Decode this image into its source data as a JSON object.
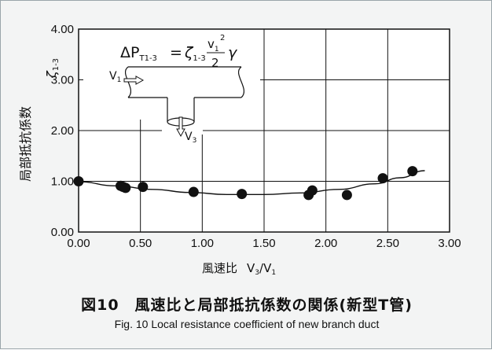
{
  "chart_data": {
    "type": "scatter",
    "title": "",
    "xlabel_main": "風速比",
    "xlabel_ratio": "V",
    "xlabel_num_sub": "3",
    "xlabel_den": "/V",
    "xlabel_den_sub": "1",
    "ylabel": "局部抵抗係数",
    "ylabel_symbol": "ζ",
    "ylabel_symbol_sub": "1-3",
    "xlim": [
      0,
      3
    ],
    "ylim": [
      0,
      4
    ],
    "xticks": [
      "0.00",
      "0.50",
      "1.00",
      "1.50",
      "2.00",
      "2.50",
      "3.00"
    ],
    "yticks": [
      "0.00",
      "1.00",
      "2.00",
      "3.00",
      "4.00"
    ],
    "grid": true,
    "points": [
      {
        "x": 0.0,
        "y": 1.0
      },
      {
        "x": 0.34,
        "y": 0.91
      },
      {
        "x": 0.36,
        "y": 0.89
      },
      {
        "x": 0.38,
        "y": 0.87
      },
      {
        "x": 0.52,
        "y": 0.89
      },
      {
        "x": 0.93,
        "y": 0.79
      },
      {
        "x": 1.32,
        "y": 0.75
      },
      {
        "x": 1.86,
        "y": 0.73
      },
      {
        "x": 1.89,
        "y": 0.82
      },
      {
        "x": 2.17,
        "y": 0.73
      },
      {
        "x": 2.46,
        "y": 1.06
      },
      {
        "x": 2.7,
        "y": 1.2
      }
    ],
    "fit_curve": [
      {
        "x": 0.0,
        "y": 0.99
      },
      {
        "x": 0.3,
        "y": 0.91
      },
      {
        "x": 0.6,
        "y": 0.84
      },
      {
        "x": 0.9,
        "y": 0.78
      },
      {
        "x": 1.2,
        "y": 0.74
      },
      {
        "x": 1.5,
        "y": 0.74
      },
      {
        "x": 1.8,
        "y": 0.77
      },
      {
        "x": 2.1,
        "y": 0.84
      },
      {
        "x": 2.4,
        "y": 0.95
      },
      {
        "x": 2.6,
        "y": 1.07
      },
      {
        "x": 2.8,
        "y": 1.21
      }
    ],
    "inset_formula": {
      "lhs": "ΔP",
      "lhs_sub": "T1-3",
      "eq": "=",
      "zeta": "ζ",
      "zeta_sub": "1-3",
      "num": "v",
      "num_sub": "1",
      "num_sup": "2",
      "den": "2",
      "gamma": "γ"
    },
    "inset_labels": {
      "inlet": "V",
      "inlet_sub": "1",
      "branch": "V",
      "branch_sub": "3"
    }
  },
  "caption": {
    "jp": "図10　風速比と局部抵抗係数の関係(新型T管)",
    "en": "Fig. 10  Local resistance coefficient of new branch duct"
  },
  "colors": {
    "background": "#f3f4f4",
    "plot": "#ffffff",
    "ink": "#111111"
  }
}
